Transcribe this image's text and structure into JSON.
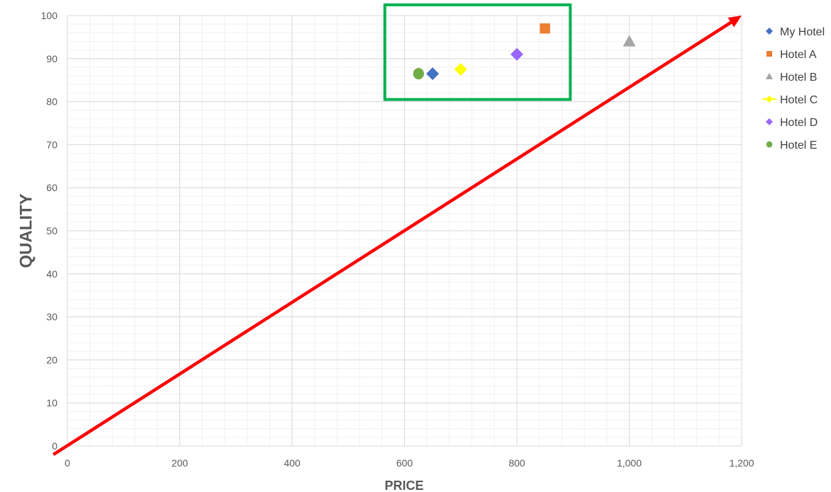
{
  "chart_data": {
    "type": "scatter",
    "title": "",
    "xlabel": "PRICE",
    "ylabel": "QUALITY",
    "xlim": [
      0,
      1200
    ],
    "ylim": [
      0,
      100
    ],
    "x_ticks": [
      0,
      200,
      400,
      600,
      800,
      1000,
      1200
    ],
    "x_tick_labels": [
      "0",
      "200",
      "400",
      "600",
      "800",
      "1,000",
      "1,200"
    ],
    "y_ticks": [
      0,
      10,
      20,
      30,
      40,
      50,
      60,
      70,
      80,
      90,
      100
    ],
    "y_tick_labels": [
      "0",
      "10",
      "20",
      "30",
      "40",
      "50",
      "60",
      "70",
      "80",
      "90",
      "100"
    ],
    "grid": true,
    "minor_grid": true,
    "legend_position": "right",
    "series": [
      {
        "name": "My Hotel",
        "marker": "diamond",
        "color": "#4472C4",
        "points": [
          {
            "x": 650,
            "y": 86.5
          }
        ]
      },
      {
        "name": "Hotel A",
        "marker": "square",
        "color": "#ED7D31",
        "points": [
          {
            "x": 850,
            "y": 97
          }
        ]
      },
      {
        "name": "Hotel B",
        "marker": "triangle",
        "color": "#A5A5A5",
        "points": [
          {
            "x": 1000,
            "y": 94
          }
        ]
      },
      {
        "name": "Hotel C",
        "marker": "diamond",
        "color": "#FFFF00",
        "legend_line": true,
        "points": [
          {
            "x": 700,
            "y": 87.5
          }
        ]
      },
      {
        "name": "Hotel D",
        "marker": "diamond",
        "color": "#9966FF",
        "points": [
          {
            "x": 800,
            "y": 91
          }
        ]
      },
      {
        "name": "Hotel E",
        "marker": "circle",
        "color": "#70AD47",
        "points": [
          {
            "x": 625,
            "y": 86.5
          }
        ]
      }
    ],
    "annotations": [
      {
        "type": "arrow",
        "color": "#FF0000",
        "from": {
          "x": -25,
          "y": -2
        },
        "to": {
          "x": 1200,
          "y": 100
        }
      },
      {
        "type": "rectangle",
        "color": "#00B050",
        "x_range": [
          565,
          895
        ],
        "y_range": [
          80.5,
          102.5
        ]
      }
    ]
  }
}
